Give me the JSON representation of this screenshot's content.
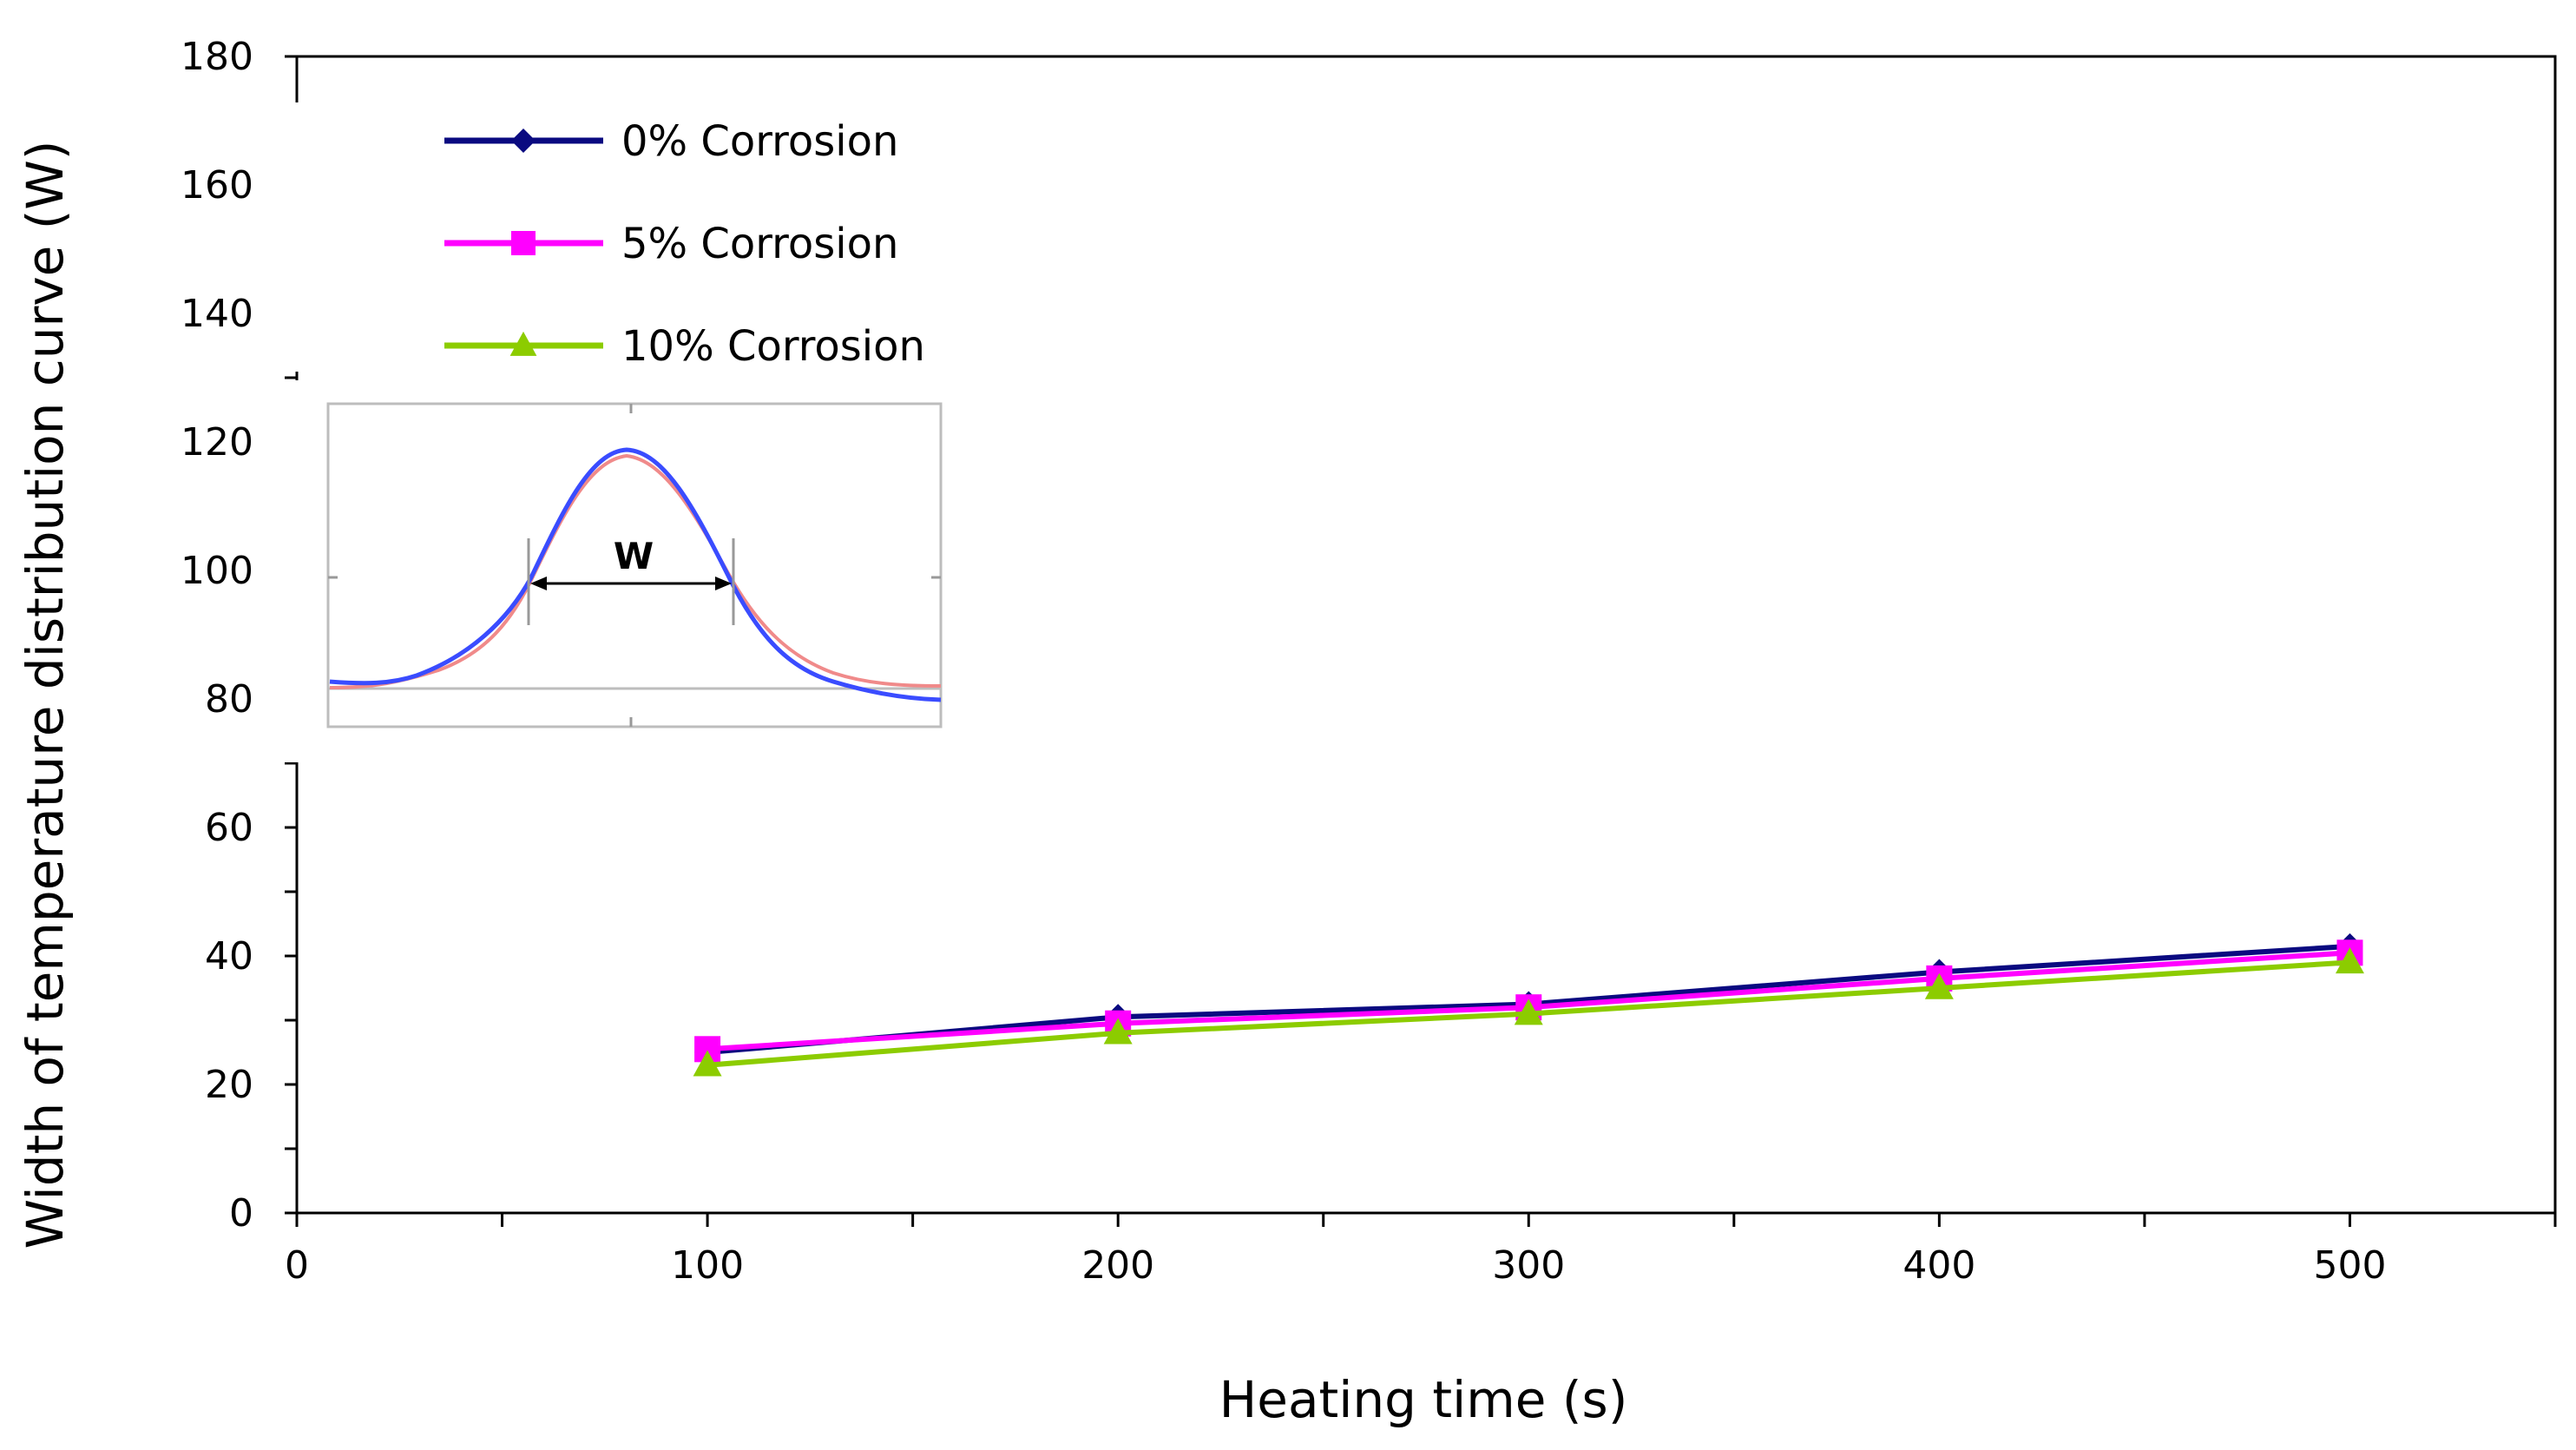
{
  "chart_data": {
    "type": "line",
    "title": "",
    "xlabel": "Heating time (s)",
    "ylabel": "Width of temperature distribution curve (W)",
    "xlim": [
      0,
      550
    ],
    "ylim": [
      0,
      180
    ],
    "x_ticks": [
      0,
      100,
      200,
      300,
      400,
      500
    ],
    "y_ticks": [
      0,
      20,
      40,
      60,
      80,
      100,
      120,
      140,
      160,
      180
    ],
    "grid": false,
    "legend_position": "top-left",
    "x": [
      100,
      200,
      300,
      400,
      500
    ],
    "series": [
      {
        "name": "0% Corrosion",
        "values": [
          25,
          30.5,
          32.5,
          37.5,
          41.5
        ],
        "color": "#0a0a80",
        "marker": "diamond"
      },
      {
        "name": "5% Corrosion",
        "values": [
          25.5,
          29.5,
          32,
          36.5,
          40.5
        ],
        "color": "#ff00ff",
        "marker": "square"
      },
      {
        "name": "10% Corrosion",
        "values": [
          23,
          28,
          31,
          35,
          39
        ],
        "color": "#8ccc00",
        "marker": "triangle"
      }
    ],
    "inset": {
      "description_label": "W",
      "curve_colors": [
        "#3a4cff",
        "#f08a8a"
      ]
    }
  }
}
